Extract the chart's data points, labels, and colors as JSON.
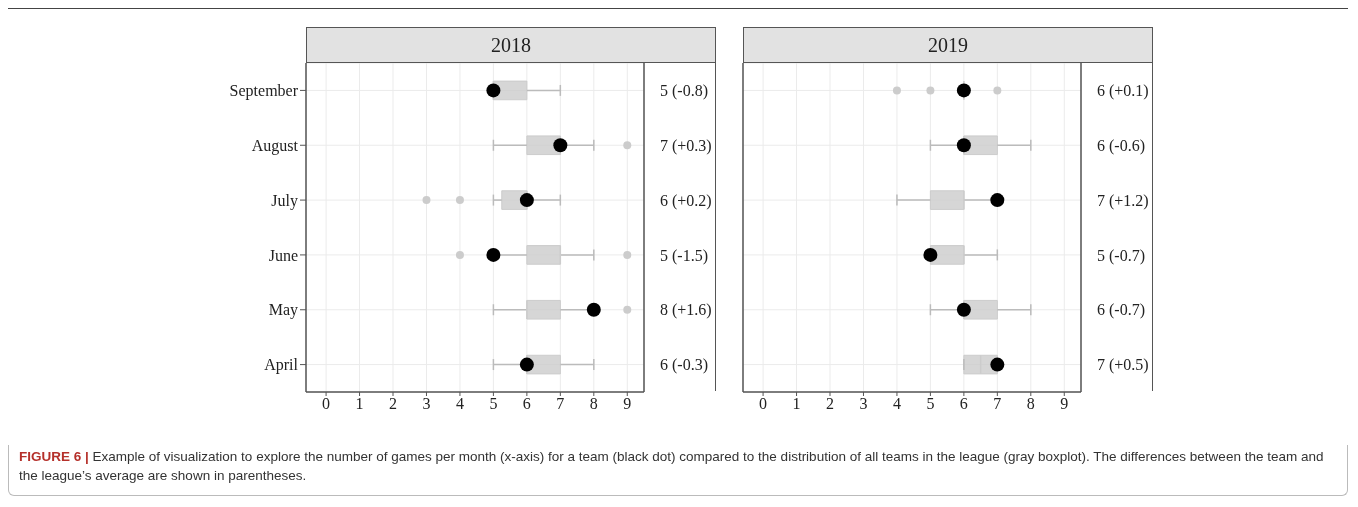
{
  "chart_data": [
    {
      "type": "box",
      "orientation": "horizontal",
      "title": "2018",
      "categories": [
        "September",
        "August",
        "July",
        "June",
        "May",
        "April"
      ],
      "color": "#cccccc",
      "boxes": [
        {
          "low": 5,
          "q1": 5,
          "median": 5,
          "q3": 6,
          "high": 7
        },
        {
          "low": 5,
          "q1": 6,
          "median": 7,
          "q3": 7,
          "high": 8,
          "outliers": [
            9
          ]
        },
        {
          "low": 5,
          "q1": 5.25,
          "median": 6,
          "q3": 6,
          "high": 7,
          "outliers": [
            3,
            4
          ]
        },
        {
          "low": 5,
          "q1": 6,
          "median": 7,
          "q3": 7,
          "high": 8,
          "outliers": [
            4,
            9
          ]
        },
        {
          "low": 5,
          "q1": 6,
          "median": 6,
          "q3": 7,
          "high": 8,
          "outliers": [
            9
          ]
        },
        {
          "low": 5,
          "q1": 6,
          "median": 6,
          "q3": 7,
          "high": 8
        }
      ],
      "series": [
        {
          "type": "scatter",
          "color": "#000000",
          "marker": "circle",
          "values": [
            5,
            7,
            6,
            5,
            8,
            6
          ],
          "value_labels": [
            "5 (-0.8)",
            "7 (+0.3)",
            "6 (+0.2)",
            "5 (-1.5)",
            "8 (+1.6)",
            "6 (-0.3)"
          ]
        }
      ],
      "xlim": [
        -0.6,
        9.5
      ],
      "xticks": [
        0,
        1,
        2,
        3,
        4,
        5,
        6,
        7,
        8,
        9
      ],
      "grid": true,
      "annotations": [
        "FIGURE 6 | Example of visualization to explore the number of games per month (x-axis) for a team (black dot) compared to the distribution of all teams in the league (gray boxplot). The differences between the team and the league’s average are shown in parentheses."
      ]
    },
    {
      "type": "box",
      "orientation": "horizontal",
      "title": "2019",
      "categories": [
        null,
        null,
        null,
        null,
        null,
        null
      ],
      "color": "#cccccc",
      "tick_labels": "x",
      "boxes": [
        {
          "low": 6,
          "q1": 6,
          "median": 6,
          "q3": 6,
          "high": 6,
          "outliers": [
            4,
            5,
            7
          ]
        },
        {
          "low": 5,
          "q1": 6,
          "median": 6,
          "q3": 7,
          "high": 8
        },
        {
          "low": 4,
          "q1": 5,
          "median": 6,
          "q3": 6,
          "high": 7
        },
        {
          "low": 5,
          "q1": 5,
          "median": 6,
          "q3": 6,
          "high": 7
        },
        {
          "low": 5,
          "q1": 6,
          "median": 6,
          "q3": 7,
          "high": 8
        },
        {
          "low": 6,
          "q1": 6,
          "median": 6.5,
          "q3": 7,
          "high": 7
        }
      ],
      "series": [
        {
          "type": "scatter",
          "color": "#000000",
          "marker": "circle",
          "values": [
            6,
            6,
            7,
            5,
            6,
            7
          ],
          "value_labels": [
            "6 (+0.1)",
            "6 (-0.6)",
            "7 (+1.2)",
            "5 (-0.7)",
            "6 (-0.7)",
            "7 (+0.5)"
          ]
        }
      ],
      "xlim": [
        -0.6,
        9.5
      ],
      "xticks": [
        0,
        1,
        2,
        3,
        4,
        5,
        6,
        7,
        8,
        9
      ],
      "grid": true
    }
  ]
}
